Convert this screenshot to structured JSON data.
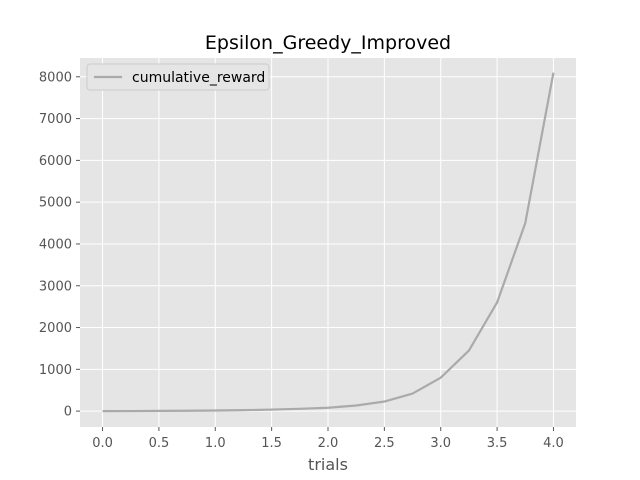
{
  "chart_data": {
    "type": "line",
    "title": "Epsilon_Greedy_Improved",
    "xlabel": "trials",
    "ylabel": "",
    "xlim": [
      -0.2,
      4.2
    ],
    "ylim": [
      -380,
      8450
    ],
    "xticks": [
      0.0,
      0.5,
      1.0,
      1.5,
      2.0,
      2.5,
      3.0,
      3.5,
      4.0
    ],
    "xtick_labels": [
      "0.0",
      "0.5",
      "1.0",
      "1.5",
      "2.0",
      "2.5",
      "3.0",
      "3.5",
      "4.0"
    ],
    "yticks": [
      0,
      1000,
      2000,
      3000,
      4000,
      5000,
      6000,
      7000,
      8000
    ],
    "ytick_labels": [
      "0",
      "1000",
      "2000",
      "3000",
      "4000",
      "5000",
      "6000",
      "7000",
      "8000"
    ],
    "grid": true,
    "legend": "upper-left",
    "series": [
      {
        "name": "cumulative_reward",
        "color": "#aaaaaa",
        "x": [
          0.0,
          0.25,
          0.5,
          0.75,
          1.0,
          1.25,
          1.5,
          1.75,
          2.0,
          2.25,
          2.5,
          2.75,
          3.0,
          3.25,
          3.5,
          3.75,
          4.0
        ],
        "y": [
          0,
          2,
          5,
          9,
          15,
          23,
          35,
          55,
          80,
          135,
          230,
          420,
          800,
          1450,
          2600,
          4500,
          8100
        ]
      }
    ]
  }
}
